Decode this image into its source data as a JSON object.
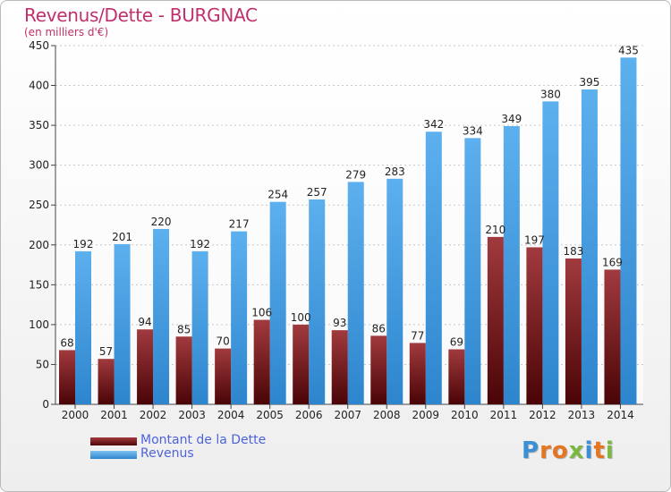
{
  "chart_data": {
    "type": "bar",
    "title": "Revenus/Dette - BURGNAC",
    "subtitle": "(en milliers d'€)",
    "categories": [
      "2000",
      "2001",
      "2002",
      "2003",
      "2004",
      "2005",
      "2006",
      "2007",
      "2008",
      "2009",
      "2010",
      "2011",
      "2012",
      "2013",
      "2014"
    ],
    "series": [
      {
        "name": "Montant de la Dette",
        "color": "#6b1015",
        "values": [
          68,
          57,
          94,
          85,
          70,
          106,
          100,
          93,
          86,
          77,
          69,
          210,
          197,
          183,
          169
        ]
      },
      {
        "name": "Revenus",
        "color": "#4fa3e3",
        "values": [
          192,
          201,
          220,
          192,
          217,
          254,
          257,
          279,
          283,
          342,
          334,
          349,
          380,
          395,
          435
        ]
      }
    ],
    "ylim": [
      0,
      450
    ],
    "yticks": [
      0,
      50,
      100,
      150,
      200,
      250,
      300,
      350,
      400,
      450
    ],
    "grid": true,
    "legend_position": "bottom-left"
  },
  "legend": {
    "items": [
      {
        "label": "Montant de la Dette"
      },
      {
        "label": "Revenus"
      }
    ]
  },
  "logo": {
    "letters": [
      "P",
      "r",
      "o",
      "x",
      "i",
      "t",
      "i"
    ],
    "colors": [
      "#3a8fd6",
      "#e5751f",
      "#e5751f",
      "#7ab842",
      "#3a8fd6",
      "#e5751f",
      "#7ab842"
    ]
  }
}
